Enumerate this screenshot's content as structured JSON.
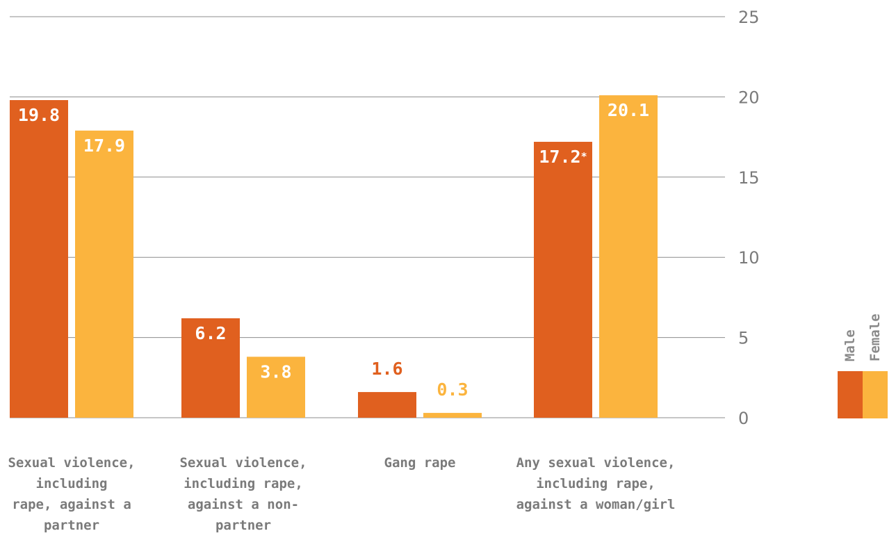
{
  "chart_data": {
    "type": "bar",
    "categories": [
      "Sexual violence, including rape, against a partner",
      "Sexual violence, including rape, against a non-partner",
      "Gang rape",
      "Any sexual violence, including rape, against a woman/girl"
    ],
    "category_lines": [
      [
        "Sexual violence,",
        "including",
        "rape, against a",
        "partner"
      ],
      [
        "Sexual violence,",
        "including rape,",
        "against a non-",
        "partner"
      ],
      [
        "Gang rape"
      ],
      [
        "Any sexual violence,",
        "including rape,",
        "against a woman/girl"
      ]
    ],
    "series": [
      {
        "name": "Male",
        "values": [
          19.8,
          6.2,
          1.6,
          17.2
        ],
        "labels": [
          "19.8",
          "6.2",
          "1.6",
          "17.2*"
        ]
      },
      {
        "name": "Female",
        "values": [
          17.9,
          3.8,
          0.3,
          20.1
        ],
        "labels": [
          "17.9",
          "3.8",
          "0.3",
          "20.1"
        ]
      }
    ],
    "ylim": [
      0,
      25
    ],
    "yticks": [
      0,
      5,
      10,
      15,
      20,
      25
    ],
    "axis_position": "right",
    "grid": true,
    "legend_position": "right",
    "colors": {
      "Male": "#E0601F",
      "Female": "#FBB43E",
      "grid": "#8c8c8c",
      "text": "#7a7a7a"
    }
  }
}
